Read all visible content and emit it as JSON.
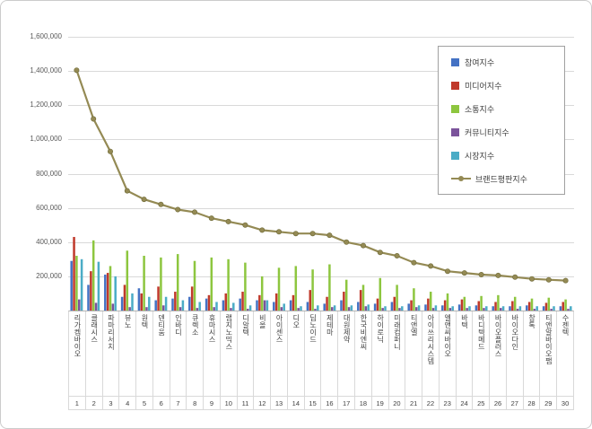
{
  "frame": {
    "background": "#ffffff",
    "border_color": "#cccccc"
  },
  "chart_data": {
    "type": "bar",
    "subtype": "grouped-bars-with-line-overlay",
    "title": "",
    "legend_position": "top-right-inside",
    "grid": true,
    "categories": [
      "리가켐바이오",
      "클래시스",
      "파마리서치",
      "뷰노",
      "원텍",
      "덴티움",
      "인바디",
      "큐렉소",
      "휴마시스",
      "랩지노믹스",
      "디알텍",
      "비올",
      "아이센스",
      "디오",
      "딥노이드",
      "제테마",
      "대원제약",
      "한국비엔씨",
      "하이로닉",
      "미래컴퍼니",
      "티앤엘",
      "아이쓰리시스템",
      "엘앤씨바이오",
      "바텍",
      "바디텍메드",
      "바이오플러스",
      "바이오다인",
      "창톡",
      "티앤알바이오팹",
      "수젠텍"
    ],
    "ranks": [
      1,
      2,
      3,
      4,
      5,
      6,
      7,
      8,
      9,
      10,
      11,
      12,
      13,
      14,
      15,
      16,
      17,
      18,
      19,
      20,
      21,
      22,
      23,
      24,
      25,
      26,
      27,
      28,
      29,
      30
    ],
    "y_axis": {
      "min": 0,
      "max": 1600000,
      "step": 200000,
      "tick_labels": [
        "200,000",
        "400,000",
        "600,000",
        "800,000",
        "1,000,000",
        "1,200,000",
        "1,400,000",
        "1,600,000"
      ]
    },
    "series": [
      {
        "name": "참여지수",
        "type": "bar",
        "color": "#4472C4",
        "values": [
          290000,
          150000,
          210000,
          80000,
          130000,
          60000,
          70000,
          80000,
          70000,
          60000,
          70000,
          60000,
          50000,
          60000,
          50000,
          40000,
          60000,
          50000,
          40000,
          50000,
          40000,
          35000,
          30000,
          35000,
          30000,
          25000,
          25000,
          30000,
          25000,
          25000
        ]
      },
      {
        "name": "미디어지수",
        "type": "bar",
        "color": "#C0392B",
        "values": [
          430000,
          230000,
          220000,
          150000,
          100000,
          140000,
          110000,
          140000,
          90000,
          100000,
          110000,
          90000,
          100000,
          90000,
          120000,
          80000,
          110000,
          120000,
          70000,
          80000,
          60000,
          70000,
          60000,
          65000,
          55000,
          50000,
          55000,
          50000,
          45000,
          50000
        ]
      },
      {
        "name": "소통지수",
        "type": "bar",
        "color": "#8DC63F",
        "values": [
          320000,
          410000,
          260000,
          350000,
          320000,
          310000,
          330000,
          290000,
          310000,
          300000,
          280000,
          200000,
          250000,
          260000,
          240000,
          270000,
          180000,
          150000,
          190000,
          150000,
          130000,
          110000,
          100000,
          80000,
          85000,
          90000,
          80000,
          70000,
          75000,
          65000
        ]
      },
      {
        "name": "커뮤니티지수",
        "type": "bar",
        "color": "#7B539B",
        "values": [
          65000,
          45000,
          40000,
          20000,
          20000,
          30000,
          20000,
          15000,
          20000,
          15000,
          10000,
          60000,
          20000,
          15000,
          10000,
          20000,
          20000,
          25000,
          15000,
          15000,
          20000,
          15000,
          15000,
          15000,
          15000,
          15000,
          10000,
          10000,
          10000,
          10000
        ]
      },
      {
        "name": "시장지수",
        "type": "bar",
        "color": "#4BACC6",
        "values": [
          300000,
          285000,
          200000,
          100000,
          80000,
          80000,
          60000,
          50000,
          50000,
          45000,
          30000,
          60000,
          40000,
          25000,
          30000,
          30000,
          30000,
          35000,
          25000,
          25000,
          30000,
          30000,
          25000,
          25000,
          25000,
          25000,
          25000,
          25000,
          25000,
          25000
        ]
      },
      {
        "name": "브랜드평판지수",
        "type": "line",
        "color": "#948A54",
        "values": [
          1405000,
          1120000,
          930000,
          700000,
          650000,
          620000,
          590000,
          575000,
          540000,
          520000,
          500000,
          470000,
          460000,
          450000,
          450000,
          440000,
          400000,
          380000,
          340000,
          320000,
          280000,
          260000,
          230000,
          220000,
          210000,
          205000,
          195000,
          185000,
          180000,
          175000
        ]
      }
    ]
  }
}
